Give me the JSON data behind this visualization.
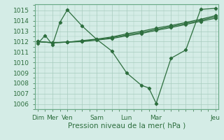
{
  "background_color": "#d4ece6",
  "grid_color": "#a8ccbe",
  "line_color": "#2d6e3e",
  "xlabel": "Pression niveau de la mer( hPa )",
  "xlabel_fontsize": 7.5,
  "ylim_min": 1005.5,
  "ylim_max": 1015.6,
  "yticks": [
    1006,
    1007,
    1008,
    1009,
    1010,
    1011,
    1012,
    1013,
    1014,
    1015
  ],
  "xtick_labels": [
    "Dim",
    "Mer",
    "Ven",
    "",
    "Sam",
    "",
    "Lun",
    "",
    "Mar",
    "",
    "",
    "",
    "Jeu"
  ],
  "xtick_positions": [
    0,
    1,
    2,
    3,
    4,
    5,
    6,
    7,
    8,
    9,
    10,
    11,
    12
  ],
  "series1_x": [
    0,
    0.5,
    1,
    1.5,
    2,
    3,
    4,
    5,
    6,
    7,
    7.5,
    8,
    9,
    10,
    11,
    12
  ],
  "series1_y": [
    1011.8,
    1012.6,
    1011.7,
    1013.85,
    1015.05,
    1013.5,
    1012.2,
    1011.1,
    1009.0,
    1007.8,
    1007.55,
    1006.05,
    1010.4,
    1011.2,
    1015.1,
    1015.2
  ],
  "series2_x": [
    0,
    1,
    2,
    3,
    4,
    5,
    6,
    7,
    8,
    9,
    10,
    11,
    12
  ],
  "series2_y": [
    1012.0,
    1011.9,
    1011.95,
    1012.1,
    1012.25,
    1012.45,
    1012.75,
    1013.0,
    1013.3,
    1013.55,
    1013.85,
    1014.15,
    1014.5
  ],
  "series3_x": [
    0,
    1,
    2,
    3,
    4,
    5,
    6,
    7,
    8,
    9,
    10,
    11,
    12
  ],
  "series3_y": [
    1012.0,
    1011.9,
    1011.95,
    1012.05,
    1012.2,
    1012.38,
    1012.65,
    1012.88,
    1013.18,
    1013.45,
    1013.75,
    1014.05,
    1014.38
  ],
  "series4_x": [
    0,
    1,
    2,
    3,
    4,
    5,
    6,
    7,
    8,
    9,
    10,
    11,
    12
  ],
  "series4_y": [
    1012.0,
    1011.9,
    1011.95,
    1012.0,
    1012.15,
    1012.3,
    1012.55,
    1012.78,
    1013.08,
    1013.35,
    1013.65,
    1013.95,
    1014.25
  ],
  "marker": "D",
  "markersize": 2.2,
  "linewidth": 0.9,
  "tick_label_fontsize": 6.5
}
